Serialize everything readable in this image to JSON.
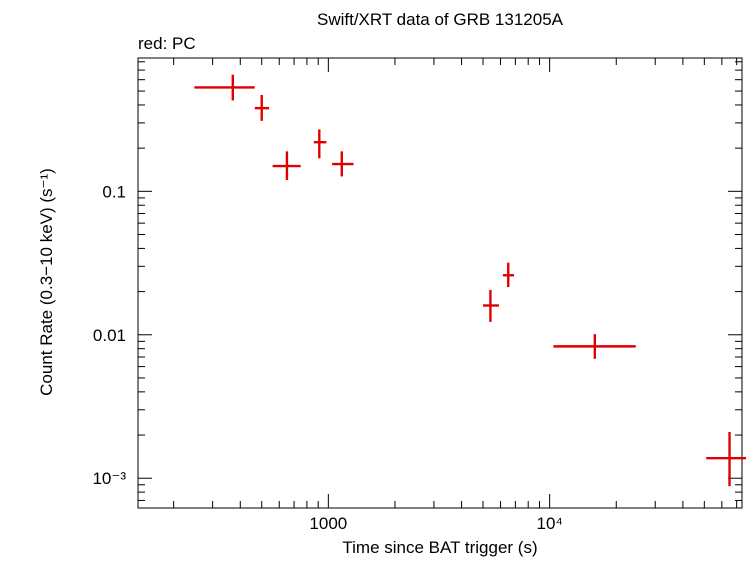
{
  "chart_data": {
    "type": "scatter",
    "title": "Swift/XRT data of GRB 131205A",
    "subtitle": "red: PC",
    "xlabel": "Time since BAT trigger (s)",
    "ylabel": "Count Rate (0.3−10 keV) (s⁻¹)",
    "xscale": "log",
    "yscale": "log",
    "xlim": [
      138,
      74000
    ],
    "ylim": [
      0.00062,
      0.85
    ],
    "grid": false,
    "x_tick_labels": [
      {
        "value": 1000,
        "label": "1000"
      },
      {
        "value": 10000,
        "label": "10⁴"
      }
    ],
    "y_tick_labels": [
      {
        "value": 0.1,
        "label": "0.1"
      },
      {
        "value": 0.01,
        "label": "0.01"
      },
      {
        "value": 0.001,
        "label": "10⁻³"
      }
    ],
    "color": "#e00000",
    "series": [
      {
        "points": [
          {
            "x": 370,
            "xlo": 248,
            "xhi": 465,
            "y": 0.53,
            "ylo": 0.43,
            "yhi": 0.65
          },
          {
            "x": 500,
            "xlo": 465,
            "xhi": 540,
            "y": 0.38,
            "ylo": 0.31,
            "yhi": 0.47
          },
          {
            "x": 650,
            "xlo": 560,
            "xhi": 750,
            "y": 0.15,
            "ylo": 0.12,
            "yhi": 0.19
          },
          {
            "x": 910,
            "xlo": 860,
            "xhi": 980,
            "y": 0.22,
            "ylo": 0.17,
            "yhi": 0.27
          },
          {
            "x": 1150,
            "xlo": 1040,
            "xhi": 1300,
            "y": 0.155,
            "ylo": 0.127,
            "yhi": 0.19
          },
          {
            "x": 5400,
            "xlo": 5000,
            "xhi": 5900,
            "y": 0.016,
            "ylo": 0.0123,
            "yhi": 0.0205
          },
          {
            "x": 6500,
            "xlo": 6150,
            "xhi": 6900,
            "y": 0.026,
            "ylo": 0.0215,
            "yhi": 0.0318
          },
          {
            "x": 16000,
            "xlo": 10400,
            "xhi": 24500,
            "y": 0.0083,
            "ylo": 0.0068,
            "yhi": 0.0101
          },
          {
            "x": 65000,
            "xlo": 51000,
            "xhi": 79000,
            "y": 0.00138,
            "ylo": 0.00088,
            "yhi": 0.0021
          }
        ]
      }
    ]
  }
}
